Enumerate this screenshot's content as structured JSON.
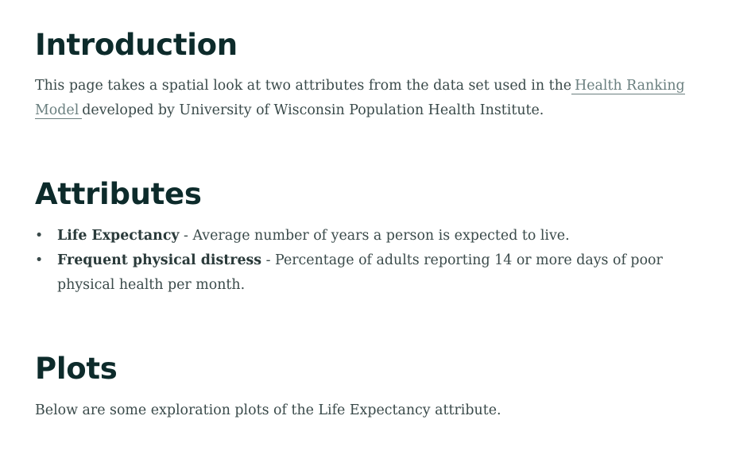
{
  "intro": {
    "title": "Introduction",
    "text_before": "This page takes a spatial look at two attributes from the data set used in the",
    "link_text": "Health Ranking Model",
    "text_after": "developed by University of Wisconsin Population Health Institute."
  },
  "attributes": {
    "title": "Attributes",
    "items": [
      {
        "name": "Life Expectancy",
        "desc": " - Average number of years a person is expected to live."
      },
      {
        "name": "Frequent physical distress",
        "desc": " - Percentage of adults reporting 14 or more days of poor physical health per month."
      }
    ]
  },
  "plots": {
    "title": "Plots",
    "text": "Below are some exploration plots of the Life Expectancy attribute."
  }
}
